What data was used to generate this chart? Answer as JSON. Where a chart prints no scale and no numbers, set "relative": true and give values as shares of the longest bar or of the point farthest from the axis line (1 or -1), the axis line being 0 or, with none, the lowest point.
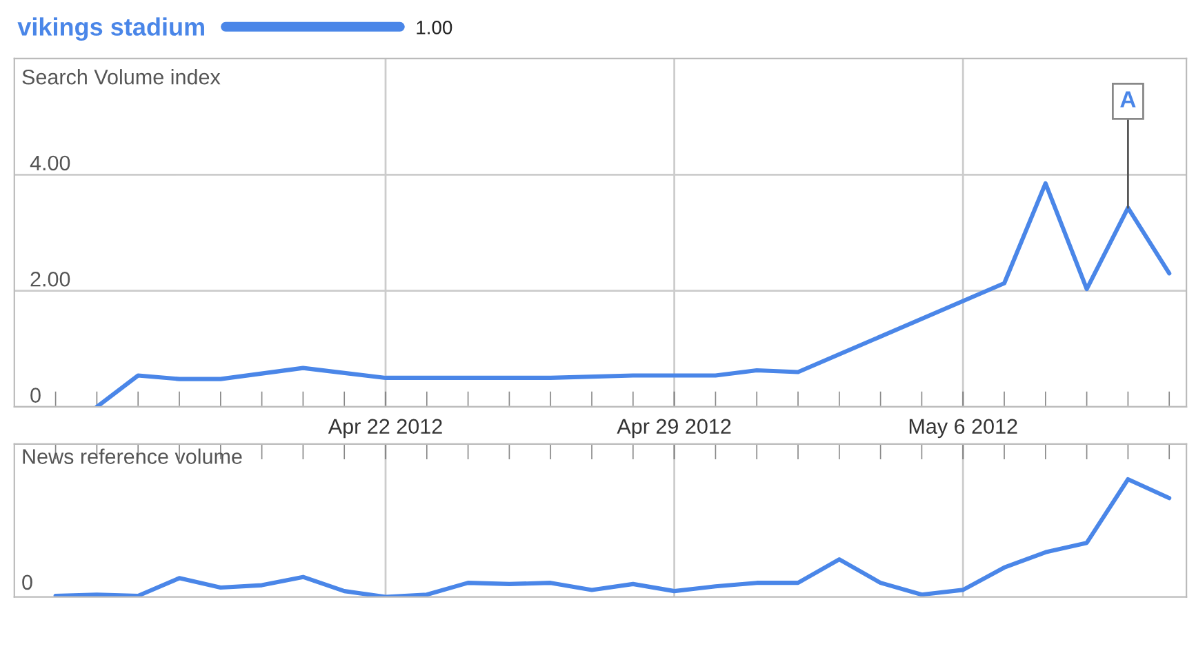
{
  "chart_data": [
    {
      "type": "line",
      "ylabel": "Search Volume index",
      "x": [
        "2012-04-15",
        "2012-04-16",
        "2012-04-17",
        "2012-04-18",
        "2012-04-20",
        "2012-04-22",
        "2012-04-26",
        "2012-04-28",
        "2012-04-30",
        "2012-05-01",
        "2012-05-02",
        "2012-05-07",
        "2012-05-08",
        "2012-05-09",
        "2012-05-10",
        "2012-05-11"
      ],
      "series": [
        {
          "name": "vikings stadium",
          "color": "#4a86e8",
          "values": [
            0,
            0.54,
            0.48,
            0.48,
            0.67,
            0.5,
            0.5,
            0.54,
            0.54,
            0.63,
            0.6,
            2.13,
            3.85,
            2.03,
            3.43,
            2.3
          ]
        }
      ],
      "xlim": [
        "2012-04-13",
        "2012-05-11T10:00"
      ],
      "xticks": [
        {
          "value": "2012-04-14",
          "label": null
        },
        {
          "value": "2012-04-15",
          "label": null
        },
        {
          "value": "2012-04-16",
          "label": null
        },
        {
          "value": "2012-04-17",
          "label": null
        },
        {
          "value": "2012-04-18",
          "label": null
        },
        {
          "value": "2012-04-19",
          "label": null
        },
        {
          "value": "2012-04-20",
          "label": null
        },
        {
          "value": "2012-04-21",
          "label": null
        },
        {
          "value": "2012-04-22",
          "label": "Apr 22 2012"
        },
        {
          "value": "2012-04-23",
          "label": null
        },
        {
          "value": "2012-04-24",
          "label": null
        },
        {
          "value": "2012-04-25",
          "label": null
        },
        {
          "value": "2012-04-26",
          "label": null
        },
        {
          "value": "2012-04-27",
          "label": null
        },
        {
          "value": "2012-04-28",
          "label": null
        },
        {
          "value": "2012-04-29",
          "label": "Apr 29 2012"
        },
        {
          "value": "2012-04-30",
          "label": null
        },
        {
          "value": "2012-05-01",
          "label": null
        },
        {
          "value": "2012-05-02",
          "label": null
        },
        {
          "value": "2012-05-03",
          "label": null
        },
        {
          "value": "2012-05-04",
          "label": null
        },
        {
          "value": "2012-05-05",
          "label": null
        },
        {
          "value": "2012-05-06",
          "label": "May 6 2012"
        },
        {
          "value": "2012-05-07",
          "label": null
        },
        {
          "value": "2012-05-08",
          "label": null
        },
        {
          "value": "2012-05-09",
          "label": null
        },
        {
          "value": "2012-05-10",
          "label": null
        },
        {
          "value": "2012-05-11",
          "label": null
        }
      ],
      "ylim": [
        0,
        6
      ],
      "yticks": [
        0,
        {
          "value": 2,
          "label": "2.00"
        },
        {
          "value": 4,
          "label": "4.00"
        }
      ],
      "grid": true,
      "legend": "top left",
      "marker": "none",
      "line_style": "solid",
      "annotations": [
        "1.00",
        {
          "text": "A",
          "x": "2012-05-10",
          "y": 3.43
        }
      ]
    },
    {
      "type": "line",
      "ylabel": "News reference volume",
      "relative": true,
      "x": [
        "2012-04-14",
        "2012-04-15",
        "2012-04-16",
        "2012-04-17",
        "2012-04-18",
        "2012-04-19",
        "2012-04-20",
        "2012-04-21",
        "2012-04-22",
        "2012-04-23",
        "2012-04-24",
        "2012-04-25",
        "2012-04-26",
        "2012-04-27",
        "2012-04-28",
        "2012-04-29",
        "2012-04-30",
        "2012-05-01",
        "2012-05-02",
        "2012-05-03",
        "2012-05-04",
        "2012-05-05",
        "2012-05-06",
        "2012-05-07",
        "2012-05-08",
        "2012-05-09",
        "2012-05-10",
        "2012-05-11"
      ],
      "series": [
        {
          "color": "#4a86e8",
          "values": [
            0.01,
            0.02,
            0.01,
            0.16,
            0.08,
            0.1,
            0.17,
            0.05,
            0,
            0.02,
            0.12,
            0.11,
            0.12,
            0.06,
            0.11,
            0.05,
            0.09,
            0.12,
            0.12,
            0.32,
            0.12,
            0.02,
            0.06,
            0.25,
            0.38,
            0.46,
            1,
            0.84
          ]
        }
      ],
      "xlim": [
        "2012-04-13",
        "2012-05-11T10:00"
      ],
      "tick_labels": false,
      "grid": "x",
      "marker": "none",
      "line_style": "solid",
      "annotations": [
        "0"
      ]
    }
  ]
}
